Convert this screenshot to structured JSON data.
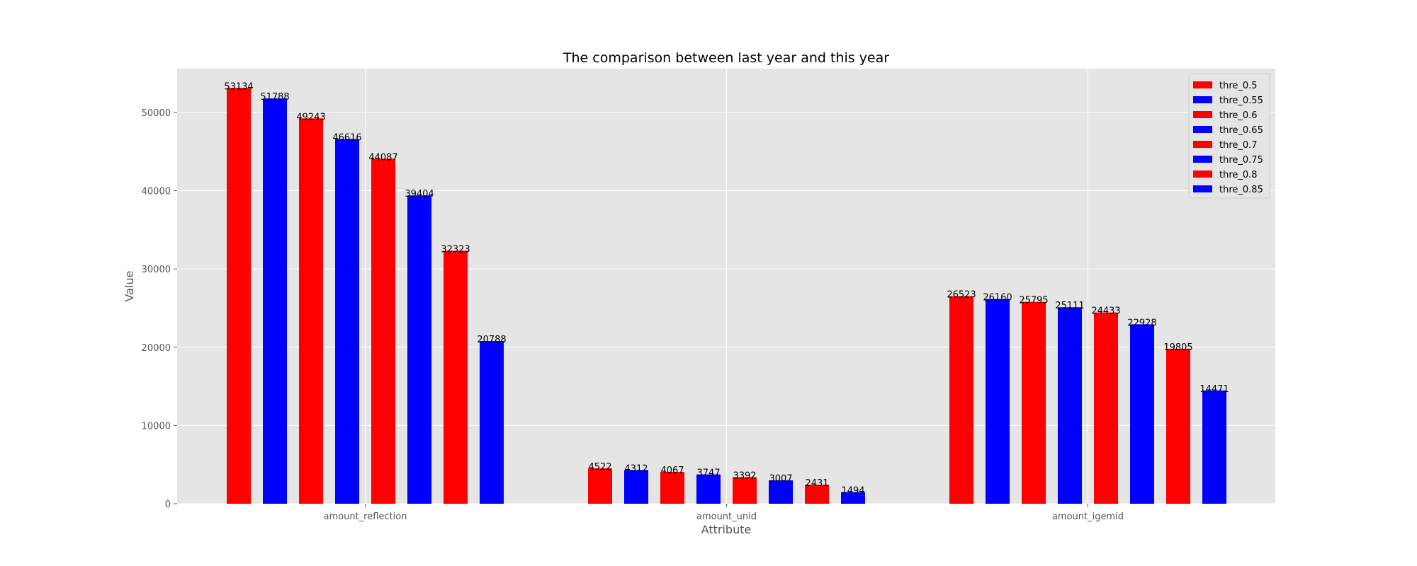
{
  "chart_data": {
    "type": "bar",
    "title": "The comparison between last year and this year",
    "xlabel": "Attribute",
    "ylabel": "Value",
    "ylim": [
      0,
      55600
    ],
    "yticks": [
      0,
      10000,
      20000,
      30000,
      40000,
      50000
    ],
    "grid": true,
    "legend_position": "top-right",
    "categories": [
      "amount_reflection",
      "amount_unid",
      "amount_igemid"
    ],
    "series": [
      {
        "name": "thre_0.5",
        "color": "#ff0000",
        "values": [
          53134,
          4522,
          26523
        ]
      },
      {
        "name": "thre_0.55",
        "color": "#0000ff",
        "values": [
          51788,
          4312,
          26160
        ]
      },
      {
        "name": "thre_0.6",
        "color": "#ff0000",
        "values": [
          49243,
          4067,
          25795
        ]
      },
      {
        "name": "thre_0.65",
        "color": "#0000ff",
        "values": [
          46616,
          3747,
          25111
        ]
      },
      {
        "name": "thre_0.7",
        "color": "#ff0000",
        "values": [
          44087,
          3392,
          24433
        ]
      },
      {
        "name": "thre_0.75",
        "color": "#0000ff",
        "values": [
          39404,
          3007,
          22928
        ]
      },
      {
        "name": "thre_0.8",
        "color": "#ff0000",
        "values": [
          32323,
          2431,
          19805
        ]
      },
      {
        "name": "thre_0.85",
        "color": "#0000ff",
        "values": [
          20788,
          1494,
          14471
        ]
      }
    ]
  }
}
